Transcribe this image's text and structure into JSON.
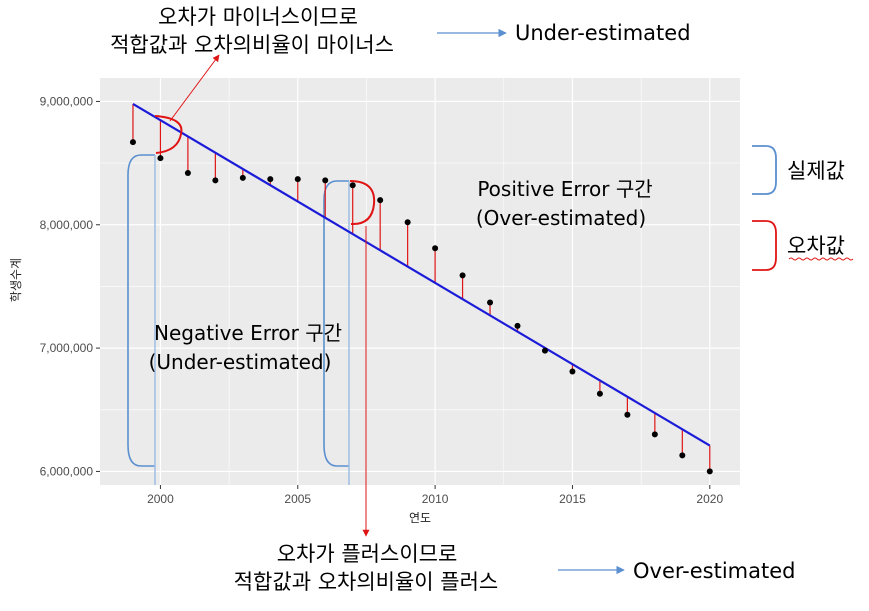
{
  "chart_data": {
    "type": "scatter",
    "title": "",
    "xlabel": "연도",
    "ylabel": "학생수계",
    "xlim": [
      1997.8,
      2021.1
    ],
    "ylim": [
      5890000,
      9190000
    ],
    "x_ticks": [
      2000,
      2005,
      2010,
      2015,
      2020
    ],
    "x_tick_labels": [
      "2000",
      "2005",
      "2010",
      "2015",
      "2020"
    ],
    "y_ticks": [
      6000000,
      7000000,
      8000000,
      9000000
    ],
    "y_tick_labels": [
      "6,000,000",
      "7,000,000",
      "8,000,000",
      "9,000,000"
    ],
    "grid": true,
    "series": [
      {
        "role": "actual",
        "x": [
          1999,
          2000,
          2001,
          2002,
          2003,
          2004,
          2005,
          2006,
          2007,
          2008,
          2009,
          2010,
          2011,
          2012,
          2013,
          2014,
          2015,
          2016,
          2017,
          2018,
          2019,
          2020
        ],
        "y": [
          8670000,
          8540000,
          8420000,
          8360000,
          8380000,
          8370000,
          8370000,
          8360000,
          8320000,
          8200000,
          8020000,
          7810000,
          7590000,
          7370000,
          7180000,
          6980000,
          6810000,
          6630000,
          6460000,
          6300000,
          6130000,
          6000000
        ],
        "color": "#000000"
      },
      {
        "role": "fitted",
        "x": [
          1999,
          2020
        ],
        "y": [
          8980000,
          6210000
        ],
        "color": "#1c1cd8"
      }
    ],
    "residual_color": "#e01414"
  },
  "annotations": {
    "top_note_line1": "오차가 마이너스이므로",
    "top_note_line2": "적합값과 오차의비율이 마이너스",
    "top_arrow_label": "Under-estimated",
    "bottom_note_line1": "오차가 플러스이므로",
    "bottom_note_line2": "적합값과 오차의비율이 플러스",
    "bottom_arrow_label": "Over-estimated",
    "positive_zone_line1": "Positive Error 구간",
    "positive_zone_line2": "(Over-estimated)",
    "negative_zone_line1": "Negative Error 구간",
    "negative_zone_line2": "(Under-estimated)",
    "legend_actual": "실제값",
    "legend_error": "오차값"
  },
  "colors": {
    "panel": "#ebebeb",
    "grid": "#ffffff",
    "bracket_blue": "#5a8fd0",
    "bracket_red": "#e01414",
    "arrow_blue": "#5a8fd0"
  }
}
